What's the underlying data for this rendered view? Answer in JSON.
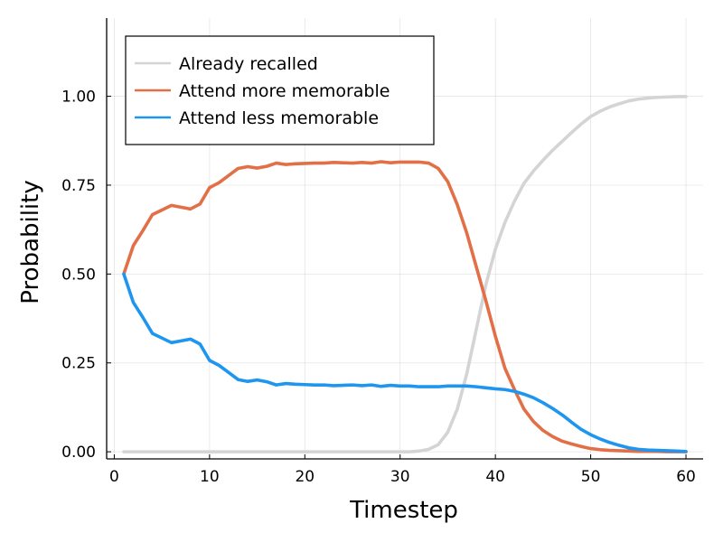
{
  "chart_data": {
    "type": "line",
    "xlabel": "Timestep",
    "ylabel": "Probability",
    "xlim": [
      -0.8,
      61.8
    ],
    "ylim": [
      -0.02,
      1.22
    ],
    "xticks": [
      0,
      10,
      20,
      30,
      40,
      50,
      60
    ],
    "yticks": [
      0,
      0.25,
      0.5,
      0.75,
      1.0
    ],
    "ytick_labels": [
      "0.00",
      "0.25",
      "0.50",
      "0.75",
      "1.00"
    ],
    "grid": true,
    "legend_position": "top-left",
    "series": [
      {
        "name": "Already recalled",
        "color": "#d4d4d4",
        "x": [
          1,
          2,
          3,
          4,
          5,
          6,
          7,
          8,
          9,
          10,
          11,
          12,
          13,
          14,
          15,
          16,
          17,
          18,
          19,
          20,
          21,
          22,
          23,
          24,
          25,
          26,
          27,
          28,
          29,
          30,
          31,
          32,
          33,
          34,
          35,
          36,
          37,
          38,
          39,
          40,
          41,
          42,
          43,
          44,
          45,
          46,
          47,
          48,
          49,
          50,
          51,
          52,
          53,
          54,
          55,
          56,
          57,
          58,
          59,
          60
        ],
        "y": [
          0,
          0,
          0,
          0,
          0,
          0,
          0,
          0,
          0,
          0,
          0,
          0,
          0,
          0,
          0,
          0,
          0,
          0,
          0,
          0,
          0,
          0,
          0,
          0,
          0,
          0,
          0,
          0,
          0,
          0,
          0,
          0.002,
          0.007,
          0.02,
          0.055,
          0.12,
          0.22,
          0.345,
          0.47,
          0.57,
          0.645,
          0.705,
          0.755,
          0.79,
          0.82,
          0.848,
          0.873,
          0.898,
          0.922,
          0.943,
          0.958,
          0.97,
          0.979,
          0.987,
          0.992,
          0.995,
          0.997,
          0.998,
          0.999,
          0.999
        ]
      },
      {
        "name": "Attend more memorable",
        "color": "#e26f46",
        "x": [
          1,
          2,
          3,
          4,
          5,
          6,
          7,
          8,
          9,
          10,
          11,
          12,
          13,
          14,
          15,
          16,
          17,
          18,
          19,
          20,
          21,
          22,
          23,
          24,
          25,
          26,
          27,
          28,
          29,
          30,
          31,
          32,
          33,
          34,
          35,
          36,
          37,
          38,
          39,
          40,
          41,
          42,
          43,
          44,
          45,
          46,
          47,
          48,
          49,
          50,
          51,
          52,
          53,
          54,
          55,
          56,
          57,
          58,
          59,
          60
        ],
        "y": [
          0.5,
          0.58,
          0.622,
          0.667,
          0.68,
          0.693,
          0.688,
          0.683,
          0.697,
          0.743,
          0.757,
          0.777,
          0.797,
          0.802,
          0.798,
          0.803,
          0.812,
          0.808,
          0.81,
          0.811,
          0.812,
          0.812,
          0.814,
          0.813,
          0.812,
          0.814,
          0.812,
          0.816,
          0.813,
          0.815,
          0.815,
          0.815,
          0.812,
          0.797,
          0.76,
          0.695,
          0.615,
          0.52,
          0.425,
          0.325,
          0.235,
          0.175,
          0.12,
          0.085,
          0.06,
          0.043,
          0.03,
          0.022,
          0.015,
          0.009,
          0.006,
          0.004,
          0.003,
          0.002,
          0.001,
          0.001,
          0.001,
          0,
          0,
          0
        ]
      },
      {
        "name": "Attend less memorable",
        "color": "#1e96f0",
        "x": [
          1,
          2,
          3,
          4,
          5,
          6,
          7,
          8,
          9,
          10,
          11,
          12,
          13,
          14,
          15,
          16,
          17,
          18,
          19,
          20,
          21,
          22,
          23,
          24,
          25,
          26,
          27,
          28,
          29,
          30,
          31,
          32,
          33,
          34,
          35,
          36,
          37,
          38,
          39,
          40,
          41,
          42,
          43,
          44,
          45,
          46,
          47,
          48,
          49,
          50,
          51,
          52,
          53,
          54,
          55,
          56,
          57,
          58,
          59,
          60
        ],
        "y": [
          0.5,
          0.42,
          0.378,
          0.333,
          0.32,
          0.307,
          0.312,
          0.317,
          0.303,
          0.257,
          0.243,
          0.223,
          0.203,
          0.198,
          0.202,
          0.197,
          0.188,
          0.192,
          0.19,
          0.189,
          0.188,
          0.188,
          0.186,
          0.187,
          0.188,
          0.186,
          0.188,
          0.184,
          0.187,
          0.185,
          0.185,
          0.183,
          0.183,
          0.183,
          0.185,
          0.185,
          0.185,
          0.183,
          0.18,
          0.177,
          0.175,
          0.17,
          0.162,
          0.152,
          0.138,
          0.122,
          0.104,
          0.083,
          0.063,
          0.048,
          0.036,
          0.026,
          0.018,
          0.011,
          0.007,
          0.005,
          0.004,
          0.003,
          0.002,
          0.001
        ]
      }
    ]
  }
}
